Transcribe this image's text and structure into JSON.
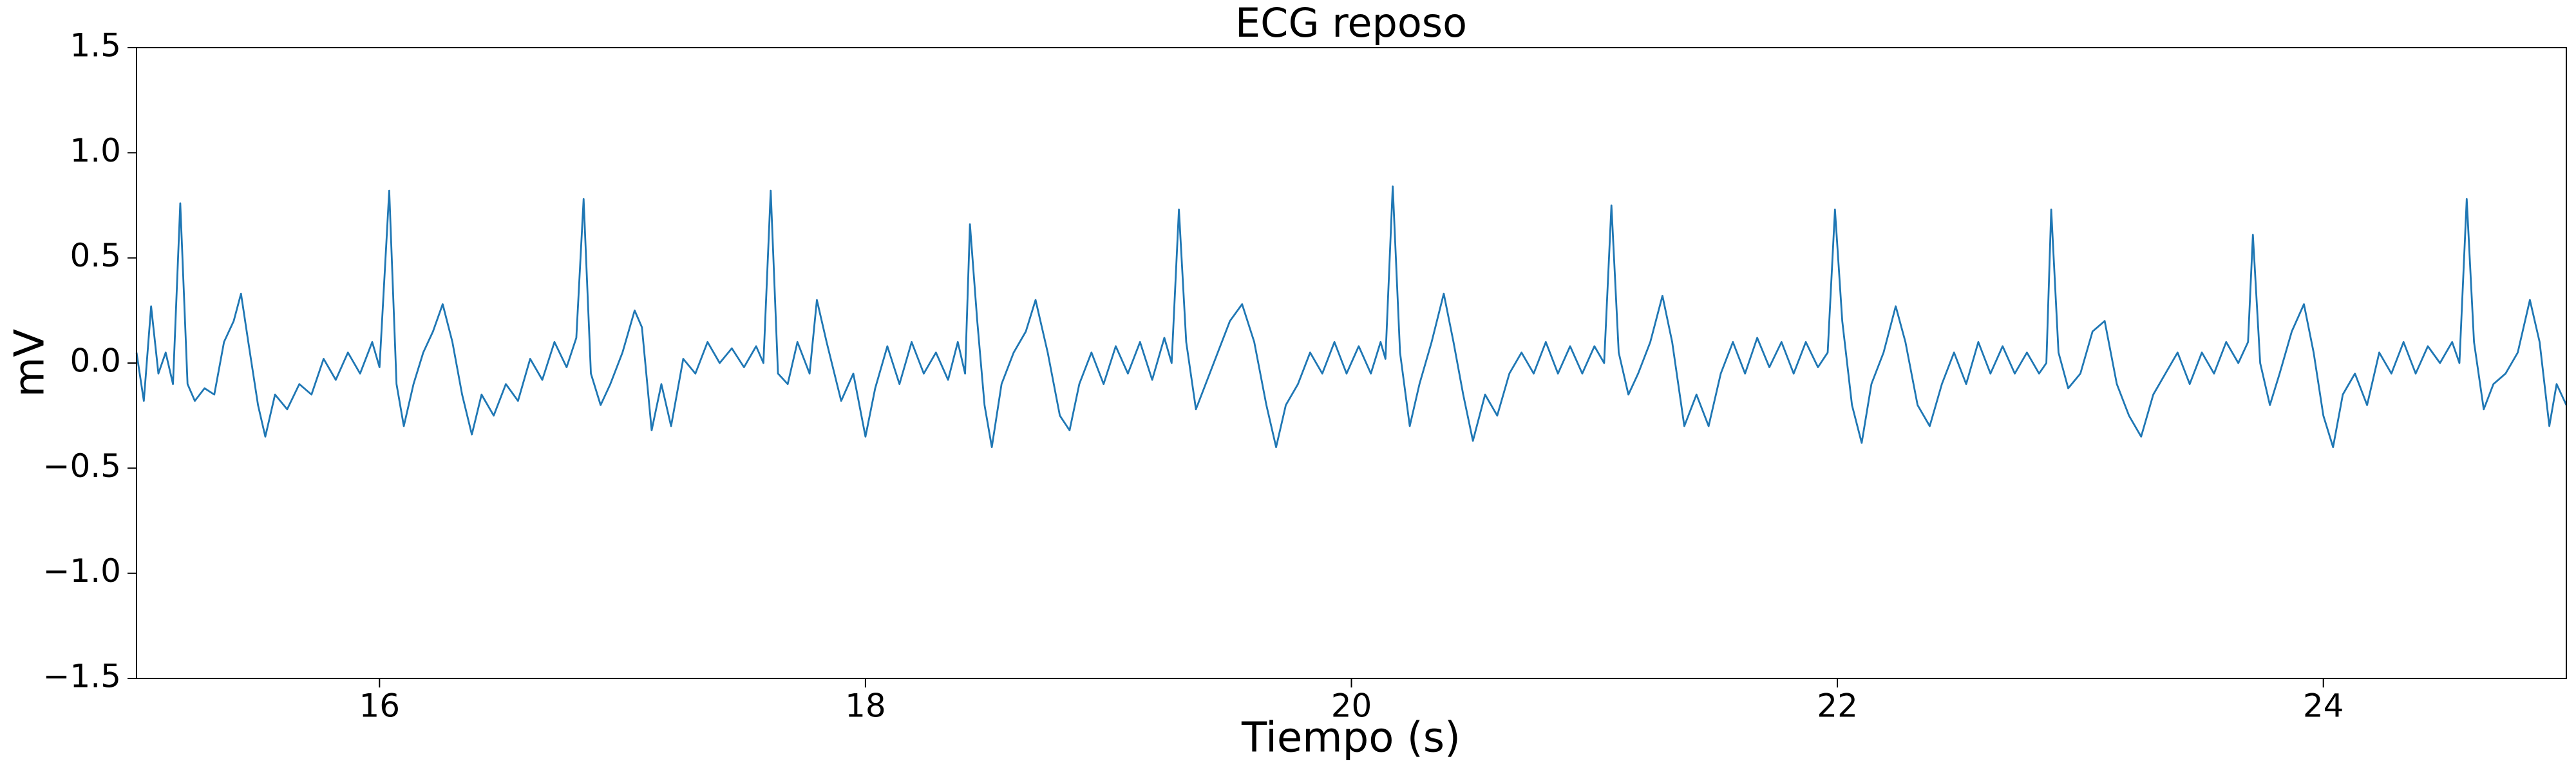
{
  "chart_data": {
    "type": "line",
    "title": "ECG reposo",
    "xlabel": "Tiempo (s)",
    "ylabel": "mV",
    "color": "#1f77b4",
    "xlim": [
      15,
      25
    ],
    "ylim": [
      -1.5,
      1.5
    ],
    "xticks": [
      16,
      18,
      20,
      22,
      24
    ],
    "yticks": [
      {
        "value": -1.5,
        "label": "−1.5"
      },
      {
        "value": -1,
        "label": "−1.0"
      },
      {
        "value": -0.5,
        "label": "−0.5"
      },
      {
        "value": 0,
        "label": "0.0"
      },
      0.5,
      {
        "value": 1,
        "label": "1.0"
      },
      1.5
    ],
    "x": [
      15.0,
      15.03,
      15.06,
      15.09,
      15.12,
      15.15,
      15.18,
      15.21,
      15.24,
      15.28,
      15.32,
      15.36,
      15.4,
      15.43,
      15.46,
      15.5,
      15.53,
      15.57,
      15.62,
      15.67,
      15.72,
      15.77,
      15.82,
      15.87,
      15.92,
      15.97,
      16.0,
      16.04,
      16.07,
      16.1,
      16.14,
      16.18,
      16.22,
      16.26,
      16.3,
      16.34,
      16.38,
      16.42,
      16.47,
      16.52,
      16.57,
      16.62,
      16.67,
      16.72,
      16.77,
      16.81,
      16.84,
      16.87,
      16.91,
      16.95,
      17.0,
      17.05,
      17.08,
      17.12,
      17.16,
      17.2,
      17.25,
      17.3,
      17.35,
      17.4,
      17.45,
      17.5,
      17.55,
      17.58,
      17.61,
      17.64,
      17.68,
      17.72,
      17.77,
      17.8,
      17.84,
      17.9,
      17.95,
      18.0,
      18.04,
      18.09,
      18.14,
      18.19,
      18.24,
      18.29,
      18.34,
      18.38,
      18.41,
      18.43,
      18.46,
      18.49,
      18.52,
      18.56,
      18.61,
      18.66,
      18.7,
      18.75,
      18.8,
      18.84,
      18.88,
      18.93,
      18.98,
      19.03,
      19.08,
      19.13,
      19.18,
      19.23,
      19.26,
      19.29,
      19.32,
      19.36,
      19.4,
      19.45,
      19.5,
      19.55,
      19.6,
      19.65,
      19.69,
      19.73,
      19.78,
      19.83,
      19.88,
      19.93,
      19.98,
      20.03,
      20.08,
      20.12,
      20.14,
      20.17,
      20.2,
      20.24,
      20.28,
      20.33,
      20.38,
      20.42,
      20.46,
      20.5,
      20.55,
      20.6,
      20.65,
      20.7,
      20.75,
      20.8,
      20.85,
      20.9,
      20.95,
      21.0,
      21.04,
      21.07,
      21.1,
      21.14,
      21.18,
      21.23,
      21.28,
      21.32,
      21.37,
      21.42,
      21.47,
      21.52,
      21.57,
      21.62,
      21.67,
      21.72,
      21.77,
      21.82,
      21.87,
      21.92,
      21.96,
      21.99,
      22.02,
      22.06,
      22.1,
      22.14,
      22.19,
      22.24,
      22.28,
      22.33,
      22.38,
      22.43,
      22.48,
      22.53,
      22.58,
      22.63,
      22.68,
      22.73,
      22.78,
      22.83,
      22.86,
      22.88,
      22.91,
      22.95,
      23.0,
      23.05,
      23.1,
      23.15,
      23.2,
      23.25,
      23.3,
      23.35,
      23.4,
      23.45,
      23.5,
      23.55,
      23.6,
      23.65,
      23.69,
      23.71,
      23.74,
      23.78,
      23.82,
      23.87,
      23.92,
      23.96,
      24.0,
      24.04,
      24.08,
      24.13,
      24.18,
      24.23,
      24.28,
      24.33,
      24.38,
      24.43,
      24.48,
      24.53,
      24.56,
      24.59,
      24.62,
      24.66,
      24.7,
      24.75,
      24.8,
      24.85,
      24.89,
      24.93,
      24.96,
      25.0
    ],
    "values": [
      0.05,
      -0.18,
      0.27,
      -0.05,
      0.05,
      -0.1,
      0.76,
      -0.1,
      -0.18,
      -0.12,
      -0.15,
      0.1,
      0.2,
      0.33,
      0.1,
      -0.2,
      -0.35,
      -0.15,
      -0.22,
      -0.1,
      -0.15,
      0.02,
      -0.08,
      0.05,
      -0.05,
      0.1,
      -0.02,
      0.82,
      -0.1,
      -0.3,
      -0.1,
      0.05,
      0.15,
      0.28,
      0.1,
      -0.15,
      -0.34,
      -0.15,
      -0.25,
      -0.1,
      -0.18,
      0.02,
      -0.08,
      0.1,
      -0.02,
      0.12,
      0.78,
      -0.05,
      -0.2,
      -0.1,
      0.05,
      0.25,
      0.17,
      -0.32,
      -0.1,
      -0.3,
      0.02,
      -0.05,
      0.1,
      0.0,
      0.07,
      -0.02,
      0.08,
      0.0,
      0.82,
      -0.05,
      -0.1,
      0.1,
      -0.05,
      0.3,
      0.1,
      -0.18,
      -0.05,
      -0.35,
      -0.12,
      0.08,
      -0.1,
      0.1,
      -0.05,
      0.05,
      -0.08,
      0.1,
      -0.05,
      0.66,
      0.2,
      -0.2,
      -0.4,
      -0.1,
      0.05,
      0.15,
      0.3,
      0.05,
      -0.25,
      -0.32,
      -0.1,
      0.05,
      -0.1,
      0.08,
      -0.05,
      0.1,
      -0.08,
      0.12,
      0.0,
      0.73,
      0.1,
      -0.22,
      -0.1,
      0.05,
      0.2,
      0.28,
      0.1,
      -0.2,
      -0.4,
      -0.2,
      -0.1,
      0.05,
      -0.05,
      0.1,
      -0.05,
      0.08,
      -0.05,
      0.1,
      0.02,
      0.84,
      0.05,
      -0.3,
      -0.1,
      0.1,
      0.33,
      0.1,
      -0.15,
      -0.37,
      -0.15,
      -0.25,
      -0.05,
      0.05,
      -0.05,
      0.1,
      -0.05,
      0.08,
      -0.05,
      0.08,
      0.0,
      0.75,
      0.05,
      -0.15,
      -0.05,
      0.1,
      0.32,
      0.1,
      -0.3,
      -0.15,
      -0.3,
      -0.05,
      0.1,
      -0.05,
      0.12,
      -0.02,
      0.1,
      -0.05,
      0.1,
      -0.02,
      0.05,
      0.73,
      0.2,
      -0.2,
      -0.38,
      -0.1,
      0.05,
      0.27,
      0.1,
      -0.2,
      -0.3,
      -0.1,
      0.05,
      -0.1,
      0.1,
      -0.05,
      0.08,
      -0.05,
      0.05,
      -0.05,
      0.0,
      0.73,
      0.05,
      -0.12,
      -0.05,
      0.15,
      0.2,
      -0.1,
      -0.25,
      -0.35,
      -0.15,
      -0.05,
      0.05,
      -0.1,
      0.05,
      -0.05,
      0.1,
      0.0,
      0.1,
      0.61,
      0.0,
      -0.2,
      -0.05,
      0.15,
      0.28,
      0.05,
      -0.25,
      -0.4,
      -0.15,
      -0.05,
      -0.2,
      0.05,
      -0.05,
      0.1,
      -0.05,
      0.08,
      0.0,
      0.1,
      0.0,
      0.78,
      0.1,
      -0.22,
      -0.1,
      -0.05,
      0.05,
      0.3,
      0.1,
      -0.3,
      -0.1,
      -0.2
    ]
  }
}
